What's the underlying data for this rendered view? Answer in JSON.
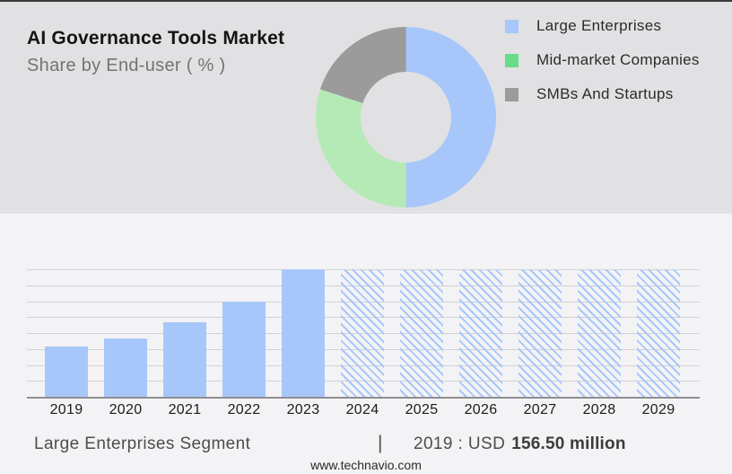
{
  "header": {
    "title": "AI Governance Tools Market",
    "subtitle": "Share by End-user ( % )"
  },
  "colors": {
    "blue": "#a7c7fa",
    "green_donut": "#b5eab7",
    "green_legend": "#69dc8c",
    "gray": "#9b9b9b",
    "top_bg": "#e1e1e3",
    "bottom_bg": "#f3f3f5",
    "gridline": "#d2d2d4",
    "axis": "#8e8e90"
  },
  "legend": {
    "items": [
      {
        "label": "Large Enterprises",
        "color": "#a7c7fa"
      },
      {
        "label": "Mid-market Companies",
        "color": "#69dc8c"
      },
      {
        "label": "SMBs And Startups",
        "color": "#9b9b9b"
      }
    ]
  },
  "chart_data": [
    {
      "type": "pie",
      "donut": true,
      "title": "AI Governance Tools Market",
      "subtitle": "Share by End-user ( % )",
      "labels": [
        "Large Enterprises",
        "Mid-market Companies",
        "SMBs And Startups"
      ],
      "values": [
        50,
        30,
        20
      ],
      "slice_colors": [
        "#a7c7fa",
        "#b5eab7",
        "#9b9b9b"
      ],
      "legend_position": "right"
    },
    {
      "type": "bar",
      "title": "Large Enterprises Segment",
      "xlabel": "",
      "ylabel": "",
      "grid": true,
      "gridline_count": 9,
      "reference_value": {
        "year": "2019",
        "value_usd_million": 156.5
      },
      "bars": [
        {
          "year": "2019",
          "height_pct": 39.4,
          "style": "solid",
          "approx_value_usd_million": 156.5
        },
        {
          "year": "2020",
          "height_pct": 45.8,
          "style": "solid",
          "approx_value_usd_million": 182
        },
        {
          "year": "2021",
          "height_pct": 58.5,
          "style": "solid",
          "approx_value_usd_million": 232
        },
        {
          "year": "2022",
          "height_pct": 74.6,
          "style": "solid",
          "approx_value_usd_million": 296
        },
        {
          "year": "2023",
          "height_pct": 100,
          "style": "solid",
          "approx_value_usd_million": 397
        },
        {
          "year": "2024",
          "height_pct": 100,
          "style": "hatched",
          "approx_value_usd_million": null
        },
        {
          "year": "2025",
          "height_pct": 100,
          "style": "hatched",
          "approx_value_usd_million": null
        },
        {
          "year": "2026",
          "height_pct": 100,
          "style": "hatched",
          "approx_value_usd_million": null
        },
        {
          "year": "2027",
          "height_pct": 100,
          "style": "hatched",
          "approx_value_usd_million": null
        },
        {
          "year": "2028",
          "height_pct": 100,
          "style": "hatched",
          "approx_value_usd_million": null
        },
        {
          "year": "2029",
          "height_pct": 100,
          "style": "hatched",
          "approx_value_usd_million": null
        }
      ]
    }
  ],
  "footer": {
    "segment_label": "Large Enterprises Segment",
    "separator": "|",
    "value_prefix": "2019 : USD",
    "value_bold": "156.50 million",
    "website": "www.technavio.com"
  }
}
